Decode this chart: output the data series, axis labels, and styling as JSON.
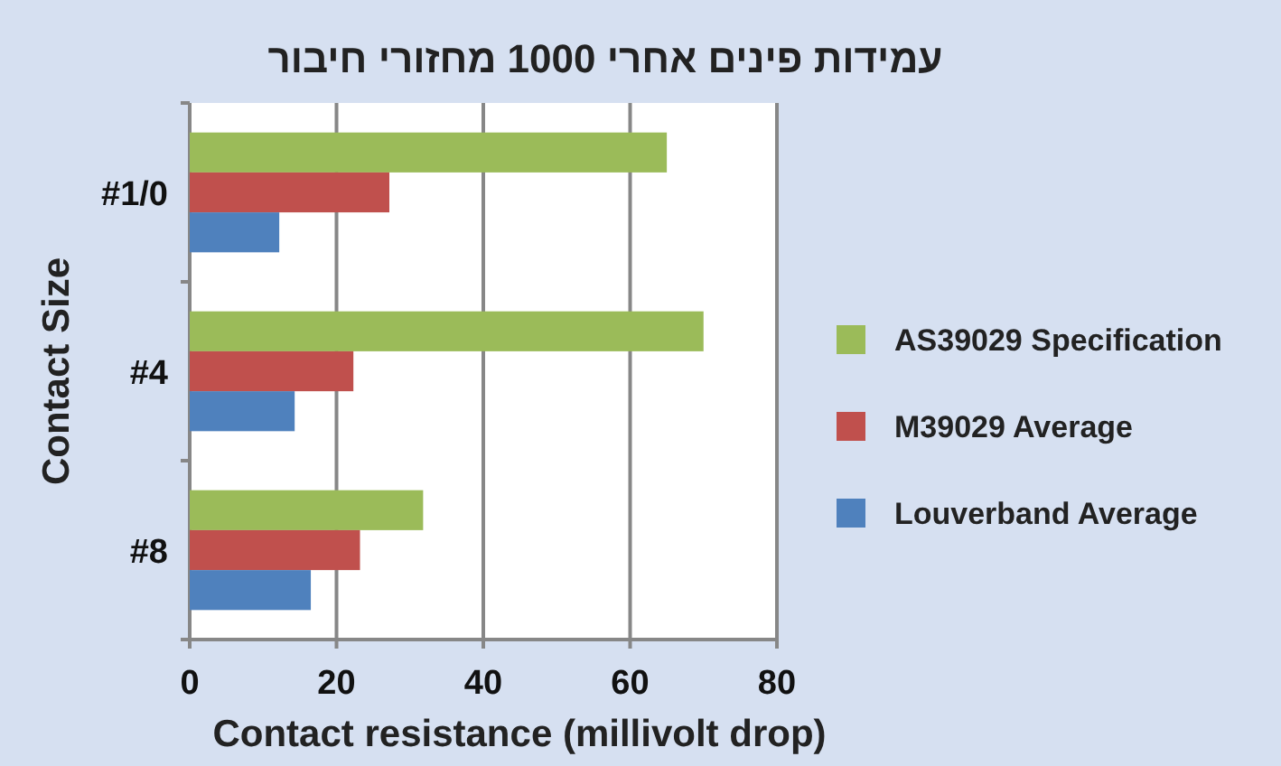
{
  "chart_data": {
    "type": "bar",
    "orientation": "horizontal",
    "title": "עמידות פינים אחרי 1000 מחזורי חיבור",
    "xlabel": "Contact resistance (millivolt drop)",
    "ylabel": "Contact Size",
    "categories": [
      "#1/0",
      "#4",
      "#8"
    ],
    "series": [
      {
        "name": "AS39029 Specification",
        "color": "#9bbb59",
        "values": [
          65,
          70,
          31.8
        ]
      },
      {
        "name": "M39029 Average",
        "color": "#c0504d",
        "values": [
          27.2,
          22.3,
          23.2
        ]
      },
      {
        "name": "Louverband Average",
        "color": "#4f81bd",
        "values": [
          12.2,
          14.3,
          16.5
        ]
      }
    ],
    "xlim": [
      0,
      80
    ],
    "xticks": [
      0,
      20,
      40,
      60,
      80
    ],
    "grid": "x",
    "legend": "right"
  }
}
